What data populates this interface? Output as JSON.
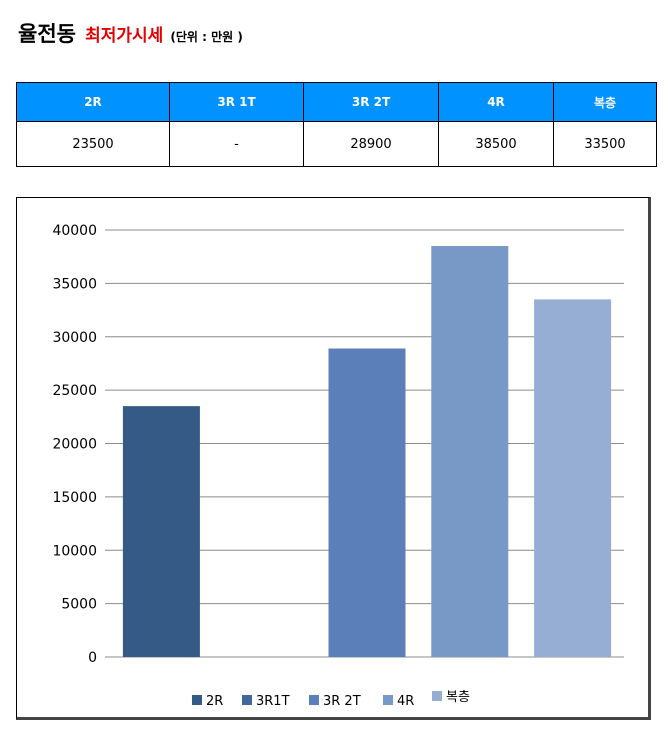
{
  "header": {
    "title": "율전동",
    "subtitle": "최저가시세",
    "unit": "(단위 : 만원 )"
  },
  "table": {
    "headers": [
      "2R",
      "3R 1T",
      "3R 2T",
      "4R",
      "복층"
    ],
    "values": [
      "23500",
      "-",
      "28900",
      "38500",
      "33500"
    ]
  },
  "chart_data": {
    "type": "bar",
    "categories": [
      "2R",
      "3R1T",
      "3R 2T",
      "4R",
      "복층"
    ],
    "values": [
      23500,
      null,
      28900,
      38500,
      33500
    ],
    "colors": [
      "#355a86",
      "#41679d",
      "#5b7fb9",
      "#7899c6",
      "#97aed4"
    ],
    "title": "",
    "xlabel": "",
    "ylabel": "",
    "ylim": [
      0,
      40000
    ],
    "yticks": [
      "0",
      "5000",
      "10000",
      "15000",
      "20000",
      "25000",
      "30000",
      "35000",
      "40000"
    ],
    "grid": true,
    "legend": "bottom"
  }
}
